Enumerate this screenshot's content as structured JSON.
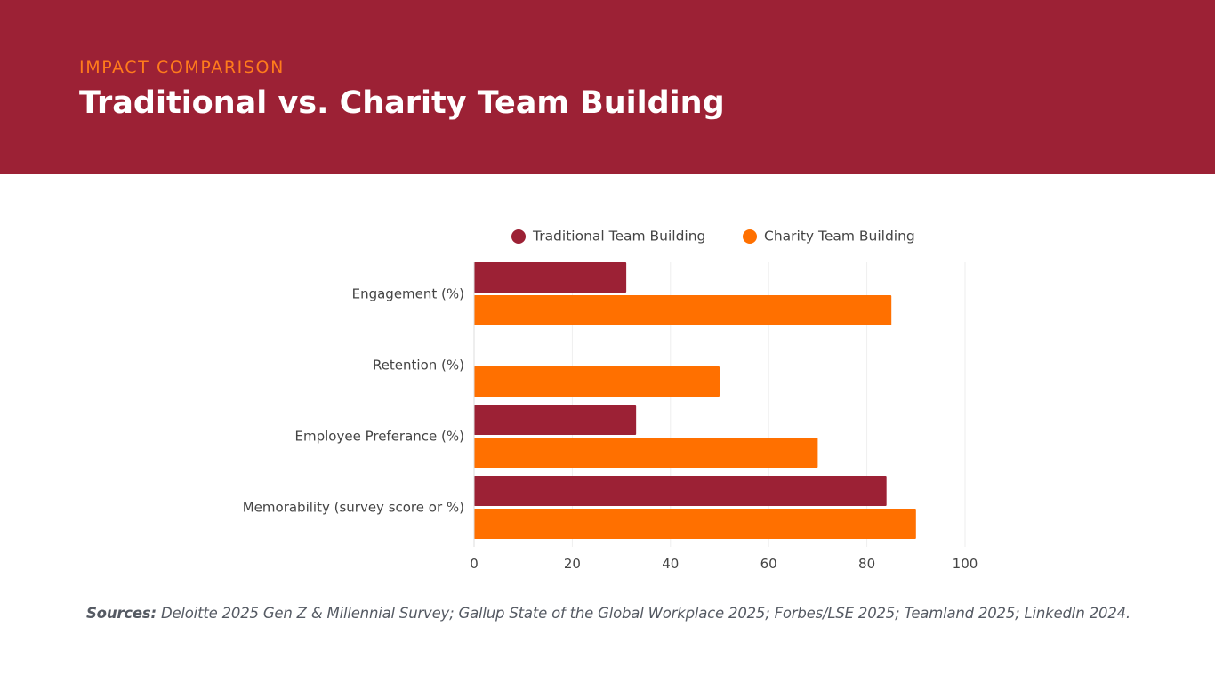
{
  "header": {
    "eyebrow": "IMPACT COMPARISON",
    "title": "Traditional vs. Charity Team Building"
  },
  "colors": {
    "header_bg": "#9c2135",
    "accent": "#ff7b1c",
    "traditional": "#9c2135",
    "charity": "#ff7000"
  },
  "chart_data": {
    "type": "bar",
    "orientation": "horizontal",
    "categories": [
      "Engagement (%)",
      "Retention (%)",
      "Employee Preferance (%)",
      "Memorability (survey score or %)"
    ],
    "series": [
      {
        "name": "Traditional Team Building",
        "values": [
          31,
          0,
          33,
          84
        ]
      },
      {
        "name": "Charity Team Building",
        "values": [
          85,
          50,
          70,
          90
        ]
      }
    ],
    "xlim": [
      0,
      100
    ],
    "xticks": [
      0,
      20,
      40,
      60,
      80,
      100
    ],
    "legend_position": "top",
    "grid": "vertical"
  },
  "footer": {
    "sources_label": "Sources:",
    "sources_text": " Deloitte 2025 Gen Z & Millennial Survey; Gallup State of the Global Workplace 2025; Forbes/LSE 2025; Teamland 2025; LinkedIn 2024."
  }
}
